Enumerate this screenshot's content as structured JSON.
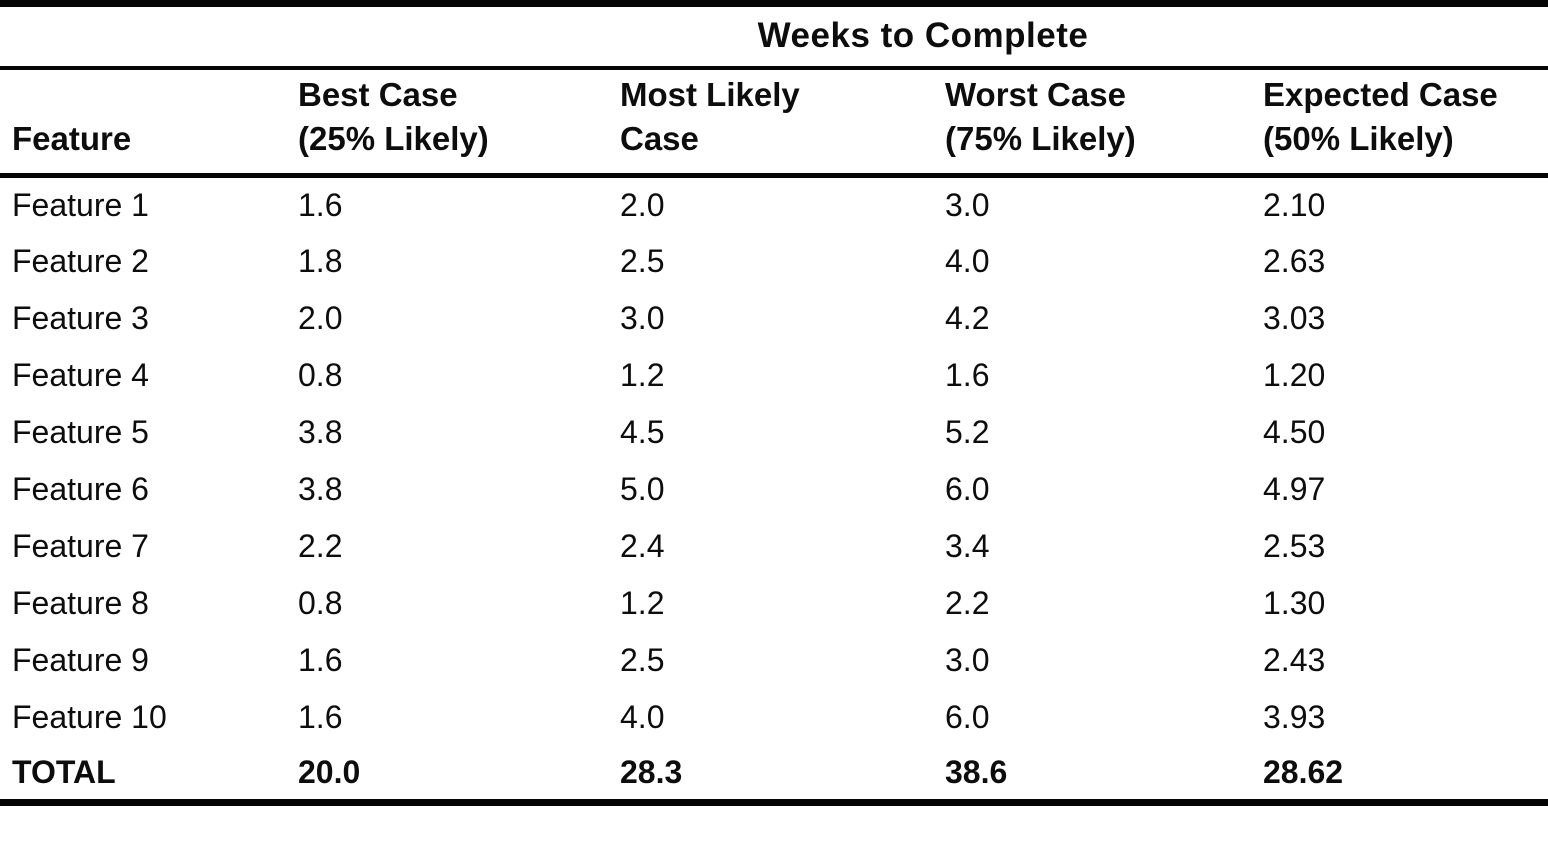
{
  "page": {
    "background_color": "#ffffff",
    "text_color": "#0d0d0d",
    "rule_color": "#050505"
  },
  "table": {
    "title": "Weeks to Complete",
    "feature_column_header": "Feature",
    "columns": [
      {
        "line1": "Best Case",
        "line2": "(25% Likely)"
      },
      {
        "line1": "Most Likely",
        "line2": "Case"
      },
      {
        "line1": "Worst Case",
        "line2": "(75% Likely)"
      },
      {
        "line1": "Expected Case",
        "line2": "(50% Likely)"
      }
    ],
    "rows": [
      {
        "feature": "Feature 1",
        "values": [
          "1.6",
          "2.0",
          "3.0",
          "2.10"
        ]
      },
      {
        "feature": "Feature 2",
        "values": [
          "1.8",
          "2.5",
          "4.0",
          "2.63"
        ]
      },
      {
        "feature": "Feature 3",
        "values": [
          "2.0",
          "3.0",
          "4.2",
          "3.03"
        ]
      },
      {
        "feature": "Feature 4",
        "values": [
          "0.8",
          "1.2",
          "1.6",
          "1.20"
        ]
      },
      {
        "feature": "Feature 5",
        "values": [
          "3.8",
          "4.5",
          "5.2",
          "4.50"
        ]
      },
      {
        "feature": "Feature 6",
        "values": [
          "3.8",
          "5.0",
          "6.0",
          "4.97"
        ]
      },
      {
        "feature": "Feature 7",
        "values": [
          "2.2",
          "2.4",
          "3.4",
          "2.53"
        ]
      },
      {
        "feature": "Feature 8",
        "values": [
          "0.8",
          "1.2",
          "2.2",
          "1.30"
        ]
      },
      {
        "feature": "Feature 9",
        "values": [
          "1.6",
          "2.5",
          "3.0",
          "2.43"
        ]
      },
      {
        "feature": "Feature 10",
        "values": [
          "1.6",
          "4.0",
          "6.0",
          "3.93"
        ]
      }
    ],
    "total_row": {
      "feature": "TOTAL",
      "values": [
        "20.0",
        "28.3",
        "38.6",
        "28.62"
      ]
    }
  }
}
